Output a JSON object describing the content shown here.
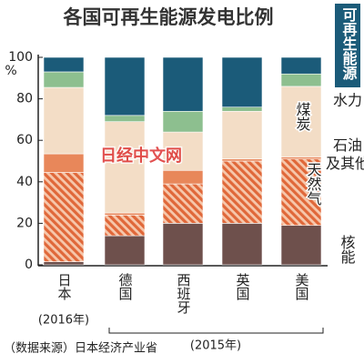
{
  "chart_data": {
    "type": "bar",
    "stacked": true,
    "title": "各国可再生能源发电比例",
    "categories": [
      "日本",
      "德国",
      "西班牙",
      "英国",
      "美国"
    ],
    "series": [
      {
        "name": "核能",
        "color": "#6e504c",
        "values": [
          1.5,
          14,
          20,
          20,
          19
        ]
      },
      {
        "name": "天然气",
        "color": "#e0683a",
        "pattern": "hatch",
        "values": [
          43,
          10,
          19,
          30,
          32
        ]
      },
      {
        "name": "石油及其他",
        "color": "#e8875a",
        "values": [
          9,
          1,
          6.5,
          1,
          1
        ]
      },
      {
        "name": "煤炭",
        "color": "#f3ddc6",
        "values": [
          32,
          44,
          18.5,
          23,
          34
        ]
      },
      {
        "name": "水力",
        "color": "#8dbf8f",
        "values": [
          7.5,
          3,
          10,
          2,
          6
        ]
      },
      {
        "name": "可再生能源",
        "color": "#1b5b79",
        "values": [
          7,
          28,
          26,
          24,
          8
        ]
      }
    ],
    "ylim": [
      0,
      100
    ],
    "yticks": [
      0,
      20,
      40,
      60,
      80,
      100
    ],
    "y_unit": "%",
    "annotations": [
      "(2016年)",
      "(2015年)",
      "（数据来源）日本经济产业省",
      "日经中文网"
    ]
  }
}
